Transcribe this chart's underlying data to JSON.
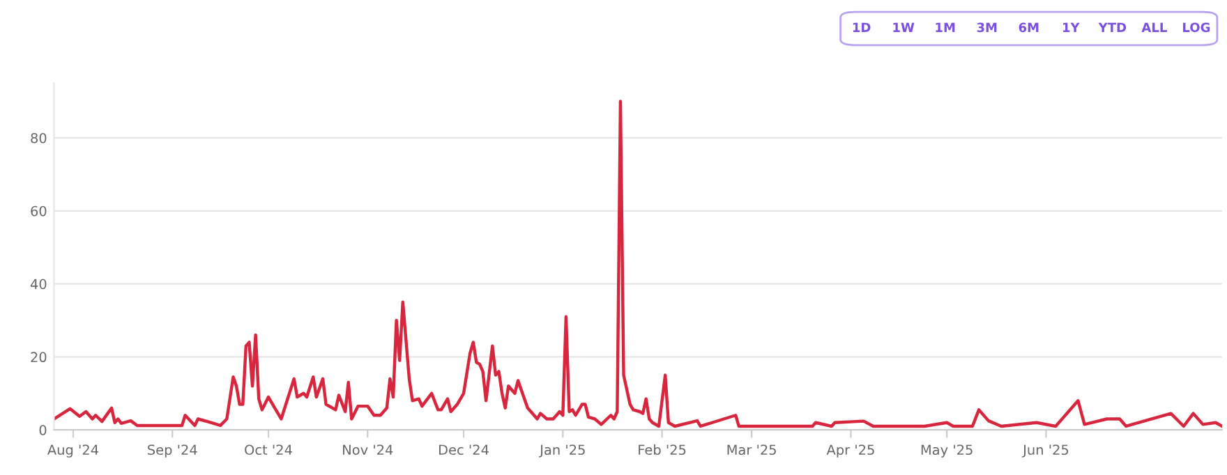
{
  "chart_data": {
    "type": "line",
    "annotations": [
      "1D",
      "1W",
      "1M",
      "3M",
      "6M",
      "1Y",
      "YTD",
      "ALL",
      "LOG"
    ],
    "x": [
      "2024-07-26",
      "2024-07-31",
      "2024-08-03",
      "2024-08-05",
      "2024-08-07",
      "2024-08-08",
      "2024-08-10",
      "2024-08-13",
      "2024-08-14",
      "2024-08-15",
      "2024-08-16",
      "2024-08-19",
      "2024-08-21",
      "2024-09-04",
      "2024-09-05",
      "2024-09-08",
      "2024-09-09",
      "2024-09-13",
      "2024-09-16",
      "2024-09-18",
      "2024-09-20",
      "2024-09-21",
      "2024-09-22",
      "2024-09-23",
      "2024-09-24",
      "2024-09-25",
      "2024-09-26",
      "2024-09-27",
      "2024-09-28",
      "2024-09-29",
      "2024-10-01",
      "2024-10-03",
      "2024-10-05",
      "2024-10-09",
      "2024-10-10",
      "2024-10-12",
      "2024-10-13",
      "2024-10-15",
      "2024-10-16",
      "2024-10-18",
      "2024-10-19",
      "2024-10-22",
      "2024-10-23",
      "2024-10-25",
      "2024-10-26",
      "2024-10-27",
      "2024-10-29",
      "2024-11-01",
      "2024-11-03",
      "2024-11-05",
      "2024-11-07",
      "2024-11-08",
      "2024-11-09",
      "2024-11-10",
      "2024-11-11",
      "2024-11-12",
      "2024-11-14",
      "2024-11-15",
      "2024-11-17",
      "2024-11-18",
      "2024-11-21",
      "2024-11-23",
      "2024-11-24",
      "2024-11-26",
      "2024-11-27",
      "2024-11-29",
      "2024-12-01",
      "2024-12-03",
      "2024-12-04",
      "2024-12-05",
      "2024-12-06",
      "2024-12-07",
      "2024-12-08",
      "2024-12-10",
      "2024-12-11",
      "2024-12-12",
      "2024-12-13",
      "2024-12-14",
      "2024-12-15",
      "2024-12-17",
      "2024-12-18",
      "2024-12-20",
      "2024-12-21",
      "2024-12-23",
      "2024-12-24",
      "2024-12-25",
      "2024-12-27",
      "2024-12-29",
      "2024-12-31",
      "2025-01-01",
      "2025-01-02",
      "2025-01-03",
      "2025-01-04",
      "2025-01-05",
      "2025-01-07",
      "2025-01-08",
      "2025-01-09",
      "2025-01-11",
      "2025-01-13",
      "2025-01-16",
      "2025-01-17",
      "2025-01-18",
      "2025-01-19",
      "2025-01-20",
      "2025-01-22",
      "2025-01-23",
      "2025-01-25",
      "2025-01-26",
      "2025-01-27",
      "2025-01-28",
      "2025-01-29",
      "2025-01-31",
      "2025-02-02",
      "2025-02-03",
      "2025-02-05",
      "2025-02-12",
      "2025-02-13",
      "2025-02-24",
      "2025-02-25",
      "2025-03-20",
      "2025-03-21",
      "2025-03-26",
      "2025-03-27",
      "2025-04-05",
      "2025-04-08",
      "2025-04-24",
      "2025-05-01",
      "2025-05-03",
      "2025-05-09",
      "2025-05-11",
      "2025-05-14",
      "2025-05-18",
      "2025-05-29",
      "2025-06-04",
      "2025-06-11",
      "2025-06-13",
      "2025-06-20",
      "2025-06-24",
      "2025-06-26",
      "2025-07-10",
      "2025-07-14",
      "2025-07-17",
      "2025-07-20",
      "2025-07-24",
      "2025-07-26"
    ],
    "series": [
      {
        "color": "#d7263d",
        "values": [
          3,
          5.8,
          3.7,
          5,
          3,
          4,
          2.3,
          6,
          2,
          3,
          1.8,
          2.5,
          1.2,
          1.2,
          4,
          1.2,
          3,
          2,
          1.2,
          3,
          14.5,
          12,
          7,
          7,
          23,
          24,
          12,
          26,
          8.5,
          5.5,
          9,
          6,
          3,
          14,
          9,
          10,
          9,
          14.5,
          9,
          14,
          7,
          5.5,
          9.5,
          5,
          13,
          3,
          6.5,
          6.5,
          4,
          4,
          6,
          14,
          9,
          30,
          19,
          35,
          14,
          8,
          8.5,
          6.5,
          10,
          5.5,
          5.5,
          8.5,
          5,
          7,
          10,
          21,
          24,
          18.5,
          18,
          16,
          8,
          23,
          15,
          16,
          10,
          6,
          12,
          10,
          13.5,
          8.5,
          6,
          4,
          3,
          4.5,
          3,
          3,
          5,
          4,
          31,
          5,
          5.5,
          4,
          7,
          7,
          3.5,
          3,
          1.5,
          4,
          3,
          5,
          90,
          15,
          7,
          5.5,
          5,
          4.5,
          8.5,
          3,
          2,
          1,
          15,
          2,
          1,
          2.5,
          1,
          4,
          1,
          1,
          2,
          1,
          2,
          2.4,
          1,
          1,
          2,
          1,
          1,
          5.5,
          2.5,
          1,
          2,
          1,
          8,
          1.5,
          3,
          3,
          1,
          4.5,
          1,
          4.5,
          1.5,
          2,
          1
        ]
      }
    ],
    "xlim": [
      "2024-07-26",
      "2025-07-26"
    ],
    "xticks": [
      {
        "value": "2024-08-01",
        "label": "Aug '24"
      },
      {
        "value": "2024-09-01",
        "label": "Sep '24"
      },
      {
        "value": "2024-10-01",
        "label": "Oct '24"
      },
      {
        "value": "2024-11-01",
        "label": "Nov '24"
      },
      {
        "value": "2024-12-01",
        "label": "Dec '24"
      },
      {
        "value": "2025-01-01",
        "label": "Jan '25"
      },
      {
        "value": "2025-02-01",
        "label": "Feb '25"
      },
      {
        "value": "2025-03-01",
        "label": "Mar '25"
      },
      {
        "value": "2025-04-01",
        "label": "Apr '25"
      },
      {
        "value": "2025-05-01",
        "label": "May '25"
      },
      {
        "value": "2025-06-01",
        "label": "Jun '25"
      }
    ],
    "ylim": [
      0,
      95
    ],
    "yticks": [
      0,
      20,
      40,
      60,
      80
    ],
    "grid": "y",
    "legend": false,
    "line_style": "solid",
    "marker": "none"
  }
}
